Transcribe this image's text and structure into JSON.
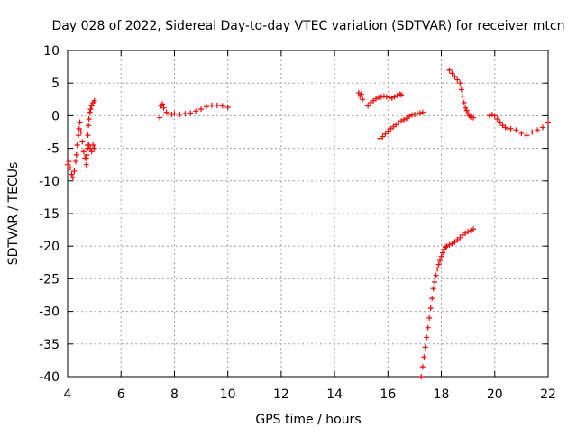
{
  "chart_data": {
    "type": "scatter",
    "title": "Day 028 of 2022, Sidereal Day-to-day VTEC variation (SDTVAR) for receiver mtcn",
    "xlabel": "GPS time / hours",
    "ylabel": "SDTVAR / TECUs",
    "xlim": [
      4,
      22
    ],
    "ylim": [
      -40,
      10
    ],
    "xticks": [
      "4",
      "6",
      "8",
      "10",
      "12",
      "14",
      "16",
      "18",
      "20",
      "22"
    ],
    "yticks": [
      "10",
      "5",
      "0",
      "-5",
      "-10",
      "-15",
      "-20",
      "-25",
      "-30",
      "-35",
      "-40"
    ],
    "grid": true,
    "marker": "+",
    "color": "#ff0000",
    "series": [
      {
        "x": [
          4.0,
          4.05,
          4.1,
          4.15,
          4.2,
          4.25,
          4.3,
          4.33,
          4.36,
          4.4,
          4.43,
          4.46,
          4.5,
          4.55,
          4.6,
          4.65,
          4.7,
          4.72,
          4.74,
          4.76,
          4.78,
          4.8,
          4.83,
          4.86,
          4.9,
          4.95,
          5.0
        ],
        "y": [
          -7.5,
          -7.0,
          -8.0,
          -9.0,
          -9.5,
          -8.5,
          -7.0,
          -6.0,
          -4.5,
          -3.0,
          -2.0,
          -1.0,
          -2.5,
          -4.0,
          -5.5,
          -6.5,
          -7.5,
          -6.0,
          -4.5,
          -3.0,
          -1.5,
          -0.5,
          0.5,
          1.0,
          1.5,
          2.0,
          2.3
        ]
      },
      {
        "x": [
          4.7,
          4.75,
          4.8,
          4.85,
          4.9,
          4.95,
          5.0
        ],
        "y": [
          -6.5,
          -5.0,
          -4.5,
          -5.0,
          -5.5,
          -4.5,
          -5.0
        ]
      },
      {
        "x": [
          7.45,
          7.5,
          7.55,
          7.6,
          7.7,
          7.8,
          7.9,
          8.0,
          8.2,
          8.4,
          8.6,
          8.8,
          9.0,
          9.2,
          9.4,
          9.6,
          9.8,
          10.0
        ],
        "y": [
          -0.3,
          1.5,
          1.8,
          1.2,
          0.5,
          0.3,
          0.2,
          0.3,
          0.2,
          0.3,
          0.4,
          0.7,
          1.0,
          1.4,
          1.6,
          1.6,
          1.5,
          1.3
        ]
      },
      {
        "x": [
          14.9,
          14.95,
          15.0,
          15.05
        ],
        "y": [
          3.5,
          3.0,
          3.3,
          2.5
        ]
      },
      {
        "x": [
          15.25,
          15.35,
          15.45,
          15.55,
          15.65,
          15.75,
          15.85,
          15.95,
          16.05,
          16.15,
          16.25,
          16.35,
          16.45,
          16.5
        ],
        "y": [
          1.5,
          2.0,
          2.3,
          2.6,
          2.8,
          2.9,
          3.0,
          2.9,
          2.8,
          2.7,
          2.9,
          3.1,
          3.3,
          3.2
        ]
      },
      {
        "x": [
          15.7,
          15.8,
          15.9,
          16.0,
          16.1,
          16.2,
          16.3,
          16.4,
          16.5,
          16.6,
          16.7,
          16.8,
          16.9,
          17.0,
          17.1,
          17.2,
          17.3
        ],
        "y": [
          -3.5,
          -3.2,
          -2.8,
          -2.4,
          -2.0,
          -1.7,
          -1.4,
          -1.1,
          -0.8,
          -0.6,
          -0.4,
          -0.1,
          0.1,
          0.2,
          0.3,
          0.4,
          0.5
        ]
      },
      {
        "x": [
          17.25,
          17.3,
          17.35,
          17.4,
          17.45,
          17.5,
          17.55,
          17.6,
          17.65,
          17.7,
          17.75,
          17.8,
          17.85,
          17.9,
          17.95,
          18.0,
          18.05,
          18.1,
          18.15,
          18.2,
          18.3,
          18.4,
          18.5,
          18.6,
          18.7,
          18.8,
          18.9,
          19.0,
          19.1,
          19.2
        ],
        "y": [
          -40.0,
          -38.5,
          -37.0,
          -35.5,
          -34.0,
          -32.5,
          -31.0,
          -29.5,
          -28.0,
          -26.5,
          -25.5,
          -24.5,
          -23.5,
          -22.8,
          -22.2,
          -21.6,
          -21.0,
          -20.5,
          -20.2,
          -20.0,
          -19.8,
          -19.6,
          -19.4,
          -19.0,
          -18.7,
          -18.3,
          -18.0,
          -17.8,
          -17.6,
          -17.4
        ]
      },
      {
        "x": [
          18.3,
          18.4,
          18.5,
          18.6,
          18.7,
          18.75,
          18.8,
          18.85,
          18.9,
          18.95,
          19.0,
          19.05,
          19.1,
          19.2
        ],
        "y": [
          7.0,
          6.5,
          6.0,
          5.5,
          5.0,
          4.0,
          3.0,
          2.0,
          1.2,
          0.8,
          0.3,
          0.0,
          -0.2,
          -0.3
        ]
      },
      {
        "x": [
          19.8,
          19.9,
          20.0,
          20.1,
          20.2,
          20.3,
          20.4,
          20.5,
          20.6,
          20.8,
          21.0,
          21.2,
          21.4,
          21.6,
          21.8,
          22.0
        ],
        "y": [
          0.0,
          0.2,
          0.0,
          -0.5,
          -1.0,
          -1.5,
          -1.8,
          -2.0,
          -2.0,
          -2.2,
          -2.7,
          -3.0,
          -2.5,
          -2.2,
          -1.8,
          -1.0
        ]
      }
    ]
  }
}
